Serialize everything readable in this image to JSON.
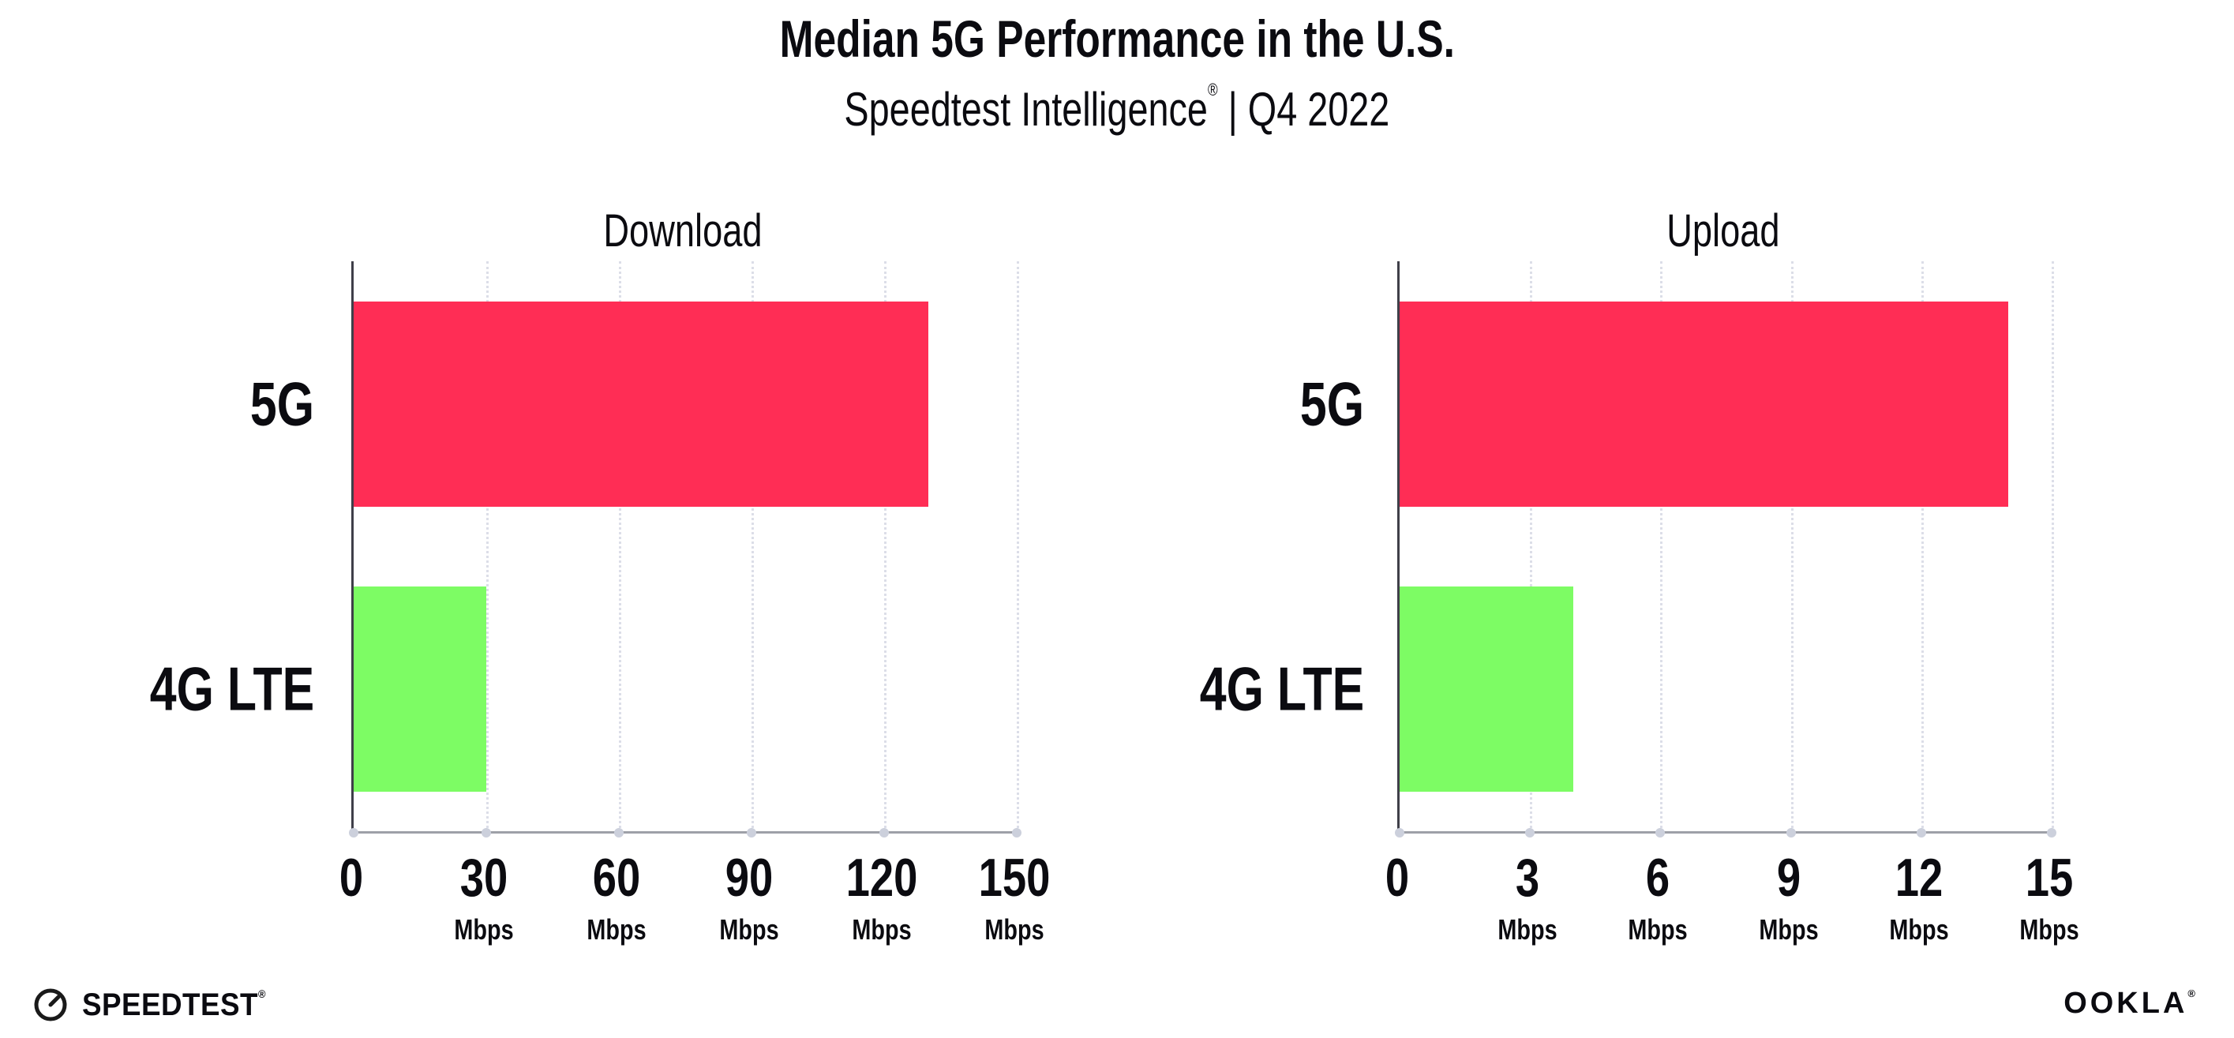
{
  "header": {
    "title": "Median 5G Performance in the U.S.",
    "subtitle": {
      "brand": "Speedtest Intelligence",
      "registered_mark": "®",
      "divider": "|",
      "period": "Q4 2022"
    }
  },
  "chart_data": [
    {
      "type": "bar",
      "orientation": "horizontal",
      "title": "Download",
      "categories": [
        "5G",
        "4G LTE"
      ],
      "values": [
        130,
        30
      ],
      "unit": "Mbps",
      "xlim": [
        0,
        150
      ],
      "xticks": [
        0,
        30,
        60,
        90,
        120,
        150
      ],
      "bar_colors": [
        "#ff2d55",
        "#7dfc64"
      ],
      "grid": "vertical-dotted",
      "legend": "none"
    },
    {
      "type": "bar",
      "orientation": "horizontal",
      "title": "Upload",
      "categories": [
        "5G",
        "4G LTE"
      ],
      "values": [
        14,
        4
      ],
      "unit": "Mbps",
      "xlim": [
        0,
        15
      ],
      "xticks": [
        0,
        3,
        6,
        9,
        12,
        15
      ],
      "bar_colors": [
        "#ff2d55",
        "#7dfc64"
      ],
      "grid": "vertical-dotted",
      "legend": "none"
    }
  ],
  "colors": {
    "bar_5g": "#ff2d55",
    "bar_4g_lte": "#7dfc64",
    "y_axis_line": "#3f3f49",
    "x_axis_line": "#9ea0a8",
    "gridline": "#dcdee8",
    "axis_tick_dot": "#ccd0dc",
    "text": "#0b0b10",
    "background": "#ffffff"
  },
  "footer": {
    "speedtest_icon": "speedtest-gauge-icon",
    "speedtest_logo_text": "SPEEDTEST",
    "speedtest_mark": "®",
    "ookla_logo_text": "OOKLA",
    "ookla_mark": "®"
  }
}
